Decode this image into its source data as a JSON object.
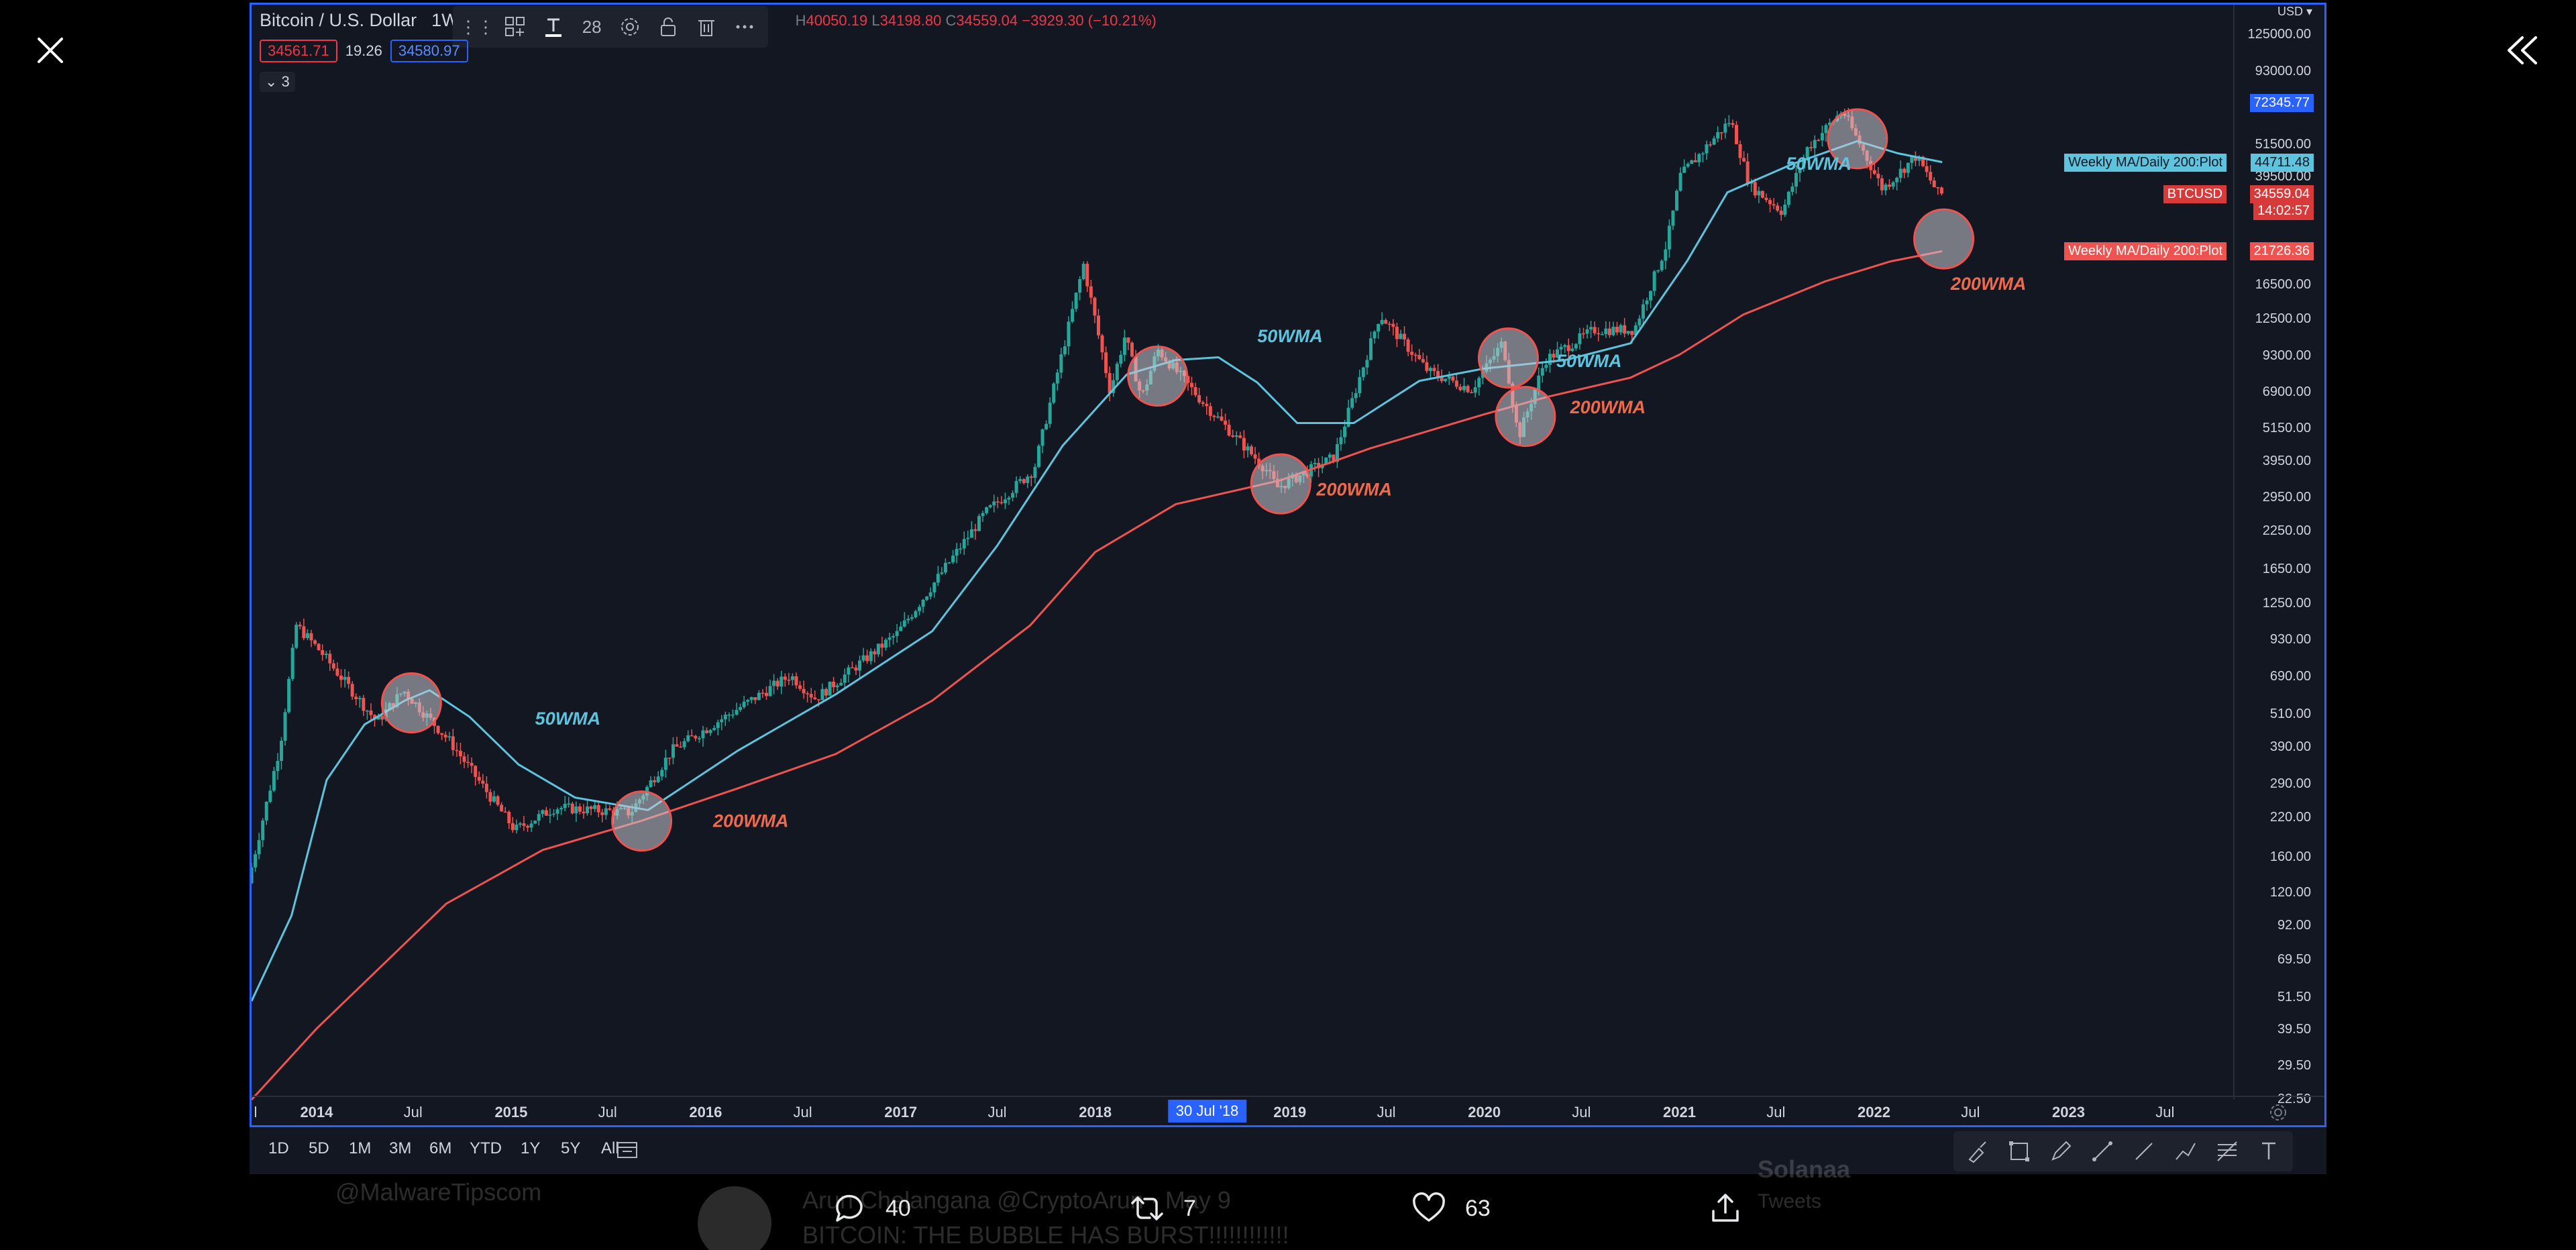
{
  "chart_data": {
    "type": "candlestick",
    "symbol_title": "Bitcoin / U.S. Dollar",
    "interval": "1W",
    "y_scale": "log",
    "ylim": [
      22.5,
      160000
    ],
    "xlim": [
      "2013-09-01",
      "2023-11-01"
    ],
    "ohlc_readout": {
      "h_label": "H",
      "h": "40050.19",
      "l_label": "L",
      "l": "34198.80",
      "c_label": "C",
      "c": "34559.04",
      "change": "−3929.30 (−10.21%)"
    },
    "price_series_approx": [
      {
        "date": "2013-09-01",
        "price": 130
      },
      {
        "date": "2013-11-01",
        "price": 400
      },
      {
        "date": "2013-12-01",
        "price": 1050
      },
      {
        "date": "2014-01-15",
        "price": 850
      },
      {
        "date": "2014-05-01",
        "price": 480
      },
      {
        "date": "2014-06-20",
        "price": 620
      },
      {
        "date": "2014-09-15",
        "price": 410
      },
      {
        "date": "2015-01-15",
        "price": 200
      },
      {
        "date": "2015-04-01",
        "price": 240
      },
      {
        "date": "2015-08-20",
        "price": 230
      },
      {
        "date": "2015-11-05",
        "price": 380
      },
      {
        "date": "2016-06-15",
        "price": 700
      },
      {
        "date": "2016-08-01",
        "price": 580
      },
      {
        "date": "2017-01-01",
        "price": 980
      },
      {
        "date": "2017-06-15",
        "price": 2600
      },
      {
        "date": "2017-09-15",
        "price": 3700
      },
      {
        "date": "2017-12-17",
        "price": 19500
      },
      {
        "date": "2018-02-05",
        "price": 7000
      },
      {
        "date": "2018-03-05",
        "price": 11000
      },
      {
        "date": "2018-04-05",
        "price": 6600
      },
      {
        "date": "2018-05-05",
        "price": 9800
      },
      {
        "date": "2018-08-01",
        "price": 6300
      },
      {
        "date": "2018-11-25",
        "price": 3700
      },
      {
        "date": "2018-12-15",
        "price": 3200
      },
      {
        "date": "2019-04-01",
        "price": 4100
      },
      {
        "date": "2019-06-26",
        "price": 13000
      },
      {
        "date": "2019-09-25",
        "price": 8200
      },
      {
        "date": "2019-12-15",
        "price": 7100
      },
      {
        "date": "2020-02-12",
        "price": 10400
      },
      {
        "date": "2020-03-12",
        "price": 4800
      },
      {
        "date": "2020-05-01",
        "price": 9000
      },
      {
        "date": "2020-08-01",
        "price": 11500
      },
      {
        "date": "2020-10-15",
        "price": 11500
      },
      {
        "date": "2020-12-15",
        "price": 23000
      },
      {
        "date": "2021-01-10",
        "price": 40000
      },
      {
        "date": "2021-04-14",
        "price": 63000
      },
      {
        "date": "2021-05-20",
        "price": 37000
      },
      {
        "date": "2021-07-20",
        "price": 30000
      },
      {
        "date": "2021-09-05",
        "price": 50000
      },
      {
        "date": "2021-11-10",
        "price": 68000
      },
      {
        "date": "2022-01-24",
        "price": 36000
      },
      {
        "date": "2022-03-28",
        "price": 47000
      },
      {
        "date": "2022-05-09",
        "price": 34559
      }
    ],
    "series": [
      {
        "name": "Weekly MA/Daily 200:Plot",
        "color": "#5ec4dd",
        "points": [
          {
            "date": "2013-09-01",
            "price": 50
          },
          {
            "date": "2013-11-15",
            "price": 100
          },
          {
            "date": "2014-01-20",
            "price": 300
          },
          {
            "date": "2014-04-01",
            "price": 470
          },
          {
            "date": "2014-06-15",
            "price": 570
          },
          {
            "date": "2014-08-01",
            "price": 620
          },
          {
            "date": "2014-10-15",
            "price": 500
          },
          {
            "date": "2015-01-15",
            "price": 340
          },
          {
            "date": "2015-05-01",
            "price": 260
          },
          {
            "date": "2015-09-15",
            "price": 235
          },
          {
            "date": "2016-03-01",
            "price": 380
          },
          {
            "date": "2016-09-01",
            "price": 600
          },
          {
            "date": "2017-03-01",
            "price": 1000
          },
          {
            "date": "2017-07-01",
            "price": 2000
          },
          {
            "date": "2017-11-01",
            "price": 4500
          },
          {
            "date": "2018-03-01",
            "price": 8000
          },
          {
            "date": "2018-06-01",
            "price": 9000
          },
          {
            "date": "2018-08-20",
            "price": 9200
          },
          {
            "date": "2018-11-01",
            "price": 7500
          },
          {
            "date": "2019-01-15",
            "price": 5400
          },
          {
            "date": "2019-05-01",
            "price": 5400
          },
          {
            "date": "2019-09-01",
            "price": 7600
          },
          {
            "date": "2020-01-01",
            "price": 8400
          },
          {
            "date": "2020-06-01",
            "price": 9000
          },
          {
            "date": "2020-10-01",
            "price": 10300
          },
          {
            "date": "2021-01-15",
            "price": 20000
          },
          {
            "date": "2021-04-01",
            "price": 35000
          },
          {
            "date": "2021-08-01",
            "price": 44000
          },
          {
            "date": "2021-12-01",
            "price": 53000
          },
          {
            "date": "2022-02-15",
            "price": 48000
          },
          {
            "date": "2022-05-09",
            "price": 44711.48
          }
        ]
      },
      {
        "name": "Weekly MA/Daily 200:Plot",
        "color": "#ef5350",
        "points": [
          {
            "date": "2013-09-01",
            "price": 22.5
          },
          {
            "date": "2014-01-01",
            "price": 40
          },
          {
            "date": "2014-09-01",
            "price": 110
          },
          {
            "date": "2015-03-01",
            "price": 170
          },
          {
            "date": "2015-09-01",
            "price": 215
          },
          {
            "date": "2016-03-01",
            "price": 280
          },
          {
            "date": "2016-09-01",
            "price": 370
          },
          {
            "date": "2017-03-01",
            "price": 570
          },
          {
            "date": "2017-09-01",
            "price": 1050
          },
          {
            "date": "2018-01-01",
            "price": 1900
          },
          {
            "date": "2018-06-01",
            "price": 2800
          },
          {
            "date": "2018-12-15",
            "price": 3400
          },
          {
            "date": "2019-06-01",
            "price": 4400
          },
          {
            "date": "2020-01-01",
            "price": 5800
          },
          {
            "date": "2020-05-01",
            "price": 6700
          },
          {
            "date": "2020-10-01",
            "price": 7800
          },
          {
            "date": "2021-01-01",
            "price": 9400
          },
          {
            "date": "2021-05-01",
            "price": 13000
          },
          {
            "date": "2021-10-01",
            "price": 17000
          },
          {
            "date": "2022-02-01",
            "price": 20000
          },
          {
            "date": "2022-05-09",
            "price": 21726.36
          }
        ]
      }
    ],
    "circle_markers": [
      {
        "date": "2014-06-28",
        "price": 560
      },
      {
        "date": "2015-09-03",
        "price": 215
      },
      {
        "date": "2018-04-28",
        "price": 7900
      },
      {
        "date": "2018-12-15",
        "price": 3300
      },
      {
        "date": "2020-02-15",
        "price": 9150
      },
      {
        "date": "2020-03-18",
        "price": 5700
      },
      {
        "date": "2021-12-01",
        "price": 54000
      },
      {
        "date": "2022-05-12",
        "price": 24000
      }
    ],
    "annotations": [
      {
        "text": "50WMA",
        "color": "#5ec4dd",
        "date": "2015-02-15",
        "price": 470
      },
      {
        "text": "200WMA",
        "color": "#ef6a4a",
        "date": "2016-01-15",
        "price": 205
      },
      {
        "text": "50WMA",
        "color": "#5ec4dd",
        "date": "2018-11-01",
        "price": 10400
      },
      {
        "text": "200WMA",
        "color": "#ef6a4a",
        "date": "2019-02-20",
        "price": 3000
      },
      {
        "text": "50WMA",
        "color": "#5ec4dd",
        "date": "2020-05-15",
        "price": 8500
      },
      {
        "text": "200WMA",
        "color": "#ef6a4a",
        "date": "2020-06-10",
        "price": 5850
      },
      {
        "text": "50WMA",
        "color": "#5ec4dd",
        "date": "2021-07-20",
        "price": 42000
      },
      {
        "text": "200WMA",
        "color": "#ef6a4a",
        "date": "2022-05-25",
        "price": 15900
      }
    ],
    "y_ticks": [
      "125000.00",
      "93000.00",
      "51500.00",
      "39500.00",
      "16500.00",
      "12500.00",
      "9300.00",
      "6900.00",
      "5150.00",
      "3950.00",
      "2950.00",
      "2250.00",
      "1650.00",
      "1250.00",
      "930.00",
      "690.00",
      "510.00",
      "390.00",
      "290.00",
      "220.00",
      "160.00",
      "120.00",
      "92.00",
      "69.50",
      "51.50",
      "39.50",
      "29.50",
      "22.50"
    ],
    "x_ticks": [
      {
        "label": "l",
        "date": "2013-07-01",
        "year": false
      },
      {
        "label": "2014",
        "date": "2014-01-01",
        "year": true
      },
      {
        "label": "Jul",
        "date": "2014-07-01",
        "year": false
      },
      {
        "label": "2015",
        "date": "2015-01-01",
        "year": true
      },
      {
        "label": "Jul",
        "date": "2015-07-01",
        "year": false
      },
      {
        "label": "2016",
        "date": "2016-01-01",
        "year": true
      },
      {
        "label": "Jul",
        "date": "2016-07-01",
        "year": false
      },
      {
        "label": "2017",
        "date": "2017-01-01",
        "year": true
      },
      {
        "label": "Jul",
        "date": "2017-07-01",
        "year": false
      },
      {
        "label": "2018",
        "date": "2018-01-01",
        "year": true
      },
      {
        "label": "2019",
        "date": "2019-01-01",
        "year": true
      },
      {
        "label": "Jul",
        "date": "2019-07-01",
        "year": false
      },
      {
        "label": "2020",
        "date": "2020-01-01",
        "year": true
      },
      {
        "label": "Jul",
        "date": "2020-07-01",
        "year": false
      },
      {
        "label": "2021",
        "date": "2021-01-01",
        "year": true
      },
      {
        "label": "Jul",
        "date": "2021-07-01",
        "year": false
      },
      {
        "label": "2022",
        "date": "2022-01-01",
        "year": true
      },
      {
        "label": "Jul",
        "date": "2022-07-01",
        "year": false
      },
      {
        "label": "2023",
        "date": "2023-01-01",
        "year": true
      },
      {
        "label": "Jul",
        "date": "2023-07-01",
        "year": false
      }
    ],
    "crosshair": {
      "label": "30 Jul '18",
      "date": "2018-07-30"
    },
    "price_tags": [
      {
        "text": "72345.77",
        "price": 72345.77,
        "bg": "#2962ff",
        "fg": "#ffffff"
      },
      {
        "text": "44711.48",
        "price": 44711.48,
        "bg": "#5ec4dd",
        "fg": "#131722"
      },
      {
        "text": "34559.04",
        "price": 34559.04,
        "bg": "#d83a3a",
        "fg": "#ffffff"
      },
      {
        "text": "14:02:57",
        "price": 30200,
        "bg": "#d83a3a",
        "fg": "#ffffff"
      },
      {
        "text": "21726.36",
        "price": 21726.36,
        "bg": "#ef5350",
        "fg": "#ffffff"
      }
    ],
    "line_labels": [
      {
        "text": "Weekly MA/Daily 200:Plot",
        "price": 44711.48,
        "bg": "#5ec4dd",
        "fg": "#131722"
      },
      {
        "text": "BTCUSD",
        "price": 34559.04,
        "bg": "#d83a3a",
        "fg": "#ffffff"
      },
      {
        "text": "Weekly MA/Daily 200:Plot",
        "price": 21726.36,
        "bg": "#ef5350",
        "fg": "#ffffff"
      }
    ],
    "currency_top": "USD ▾"
  },
  "indicator_values": {
    "left": "34561.71",
    "mid": "19.26",
    "right": "34580.97",
    "collapse": "⌄ 3"
  },
  "toolbar": {
    "font_size": "28"
  },
  "timeframes": [
    "1D",
    "5D",
    "1M",
    "3M",
    "6M",
    "YTD",
    "1Y",
    "5Y",
    "All"
  ],
  "tweet": {
    "reply_count": "40",
    "retweet_count": "7",
    "like_count": "63",
    "ghost_handle": "@MalwareTipscom",
    "ghost_author": "Arun Chelangana @CryptoArun · May 9",
    "ghost_text": "BITCOIN: THE BUBBLE HAS BURST!!!!!!!!!!!!",
    "ghost_right": "Solanaa",
    "ghost_right2": "Tweets"
  },
  "colors": {
    "accent": "#2962ff",
    "background": "#131722",
    "up": "#26a69a",
    "down": "#ef5350"
  }
}
